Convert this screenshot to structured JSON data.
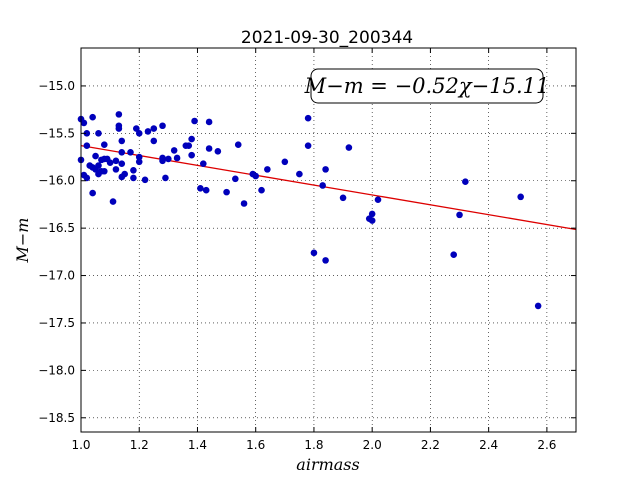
{
  "chart_data": {
    "type": "scatter",
    "title": "2021-09-30_200344",
    "xlabel": "airmass",
    "ylabel": "M−m",
    "xlim": [
      1.0,
      2.7
    ],
    "ylim": [
      -18.65,
      -14.6
    ],
    "y_inverted": true,
    "grid": true,
    "grid_style": "dotted",
    "xticks": [
      1.0,
      1.2,
      1.4,
      1.6,
      1.8,
      2.0,
      2.2,
      2.4,
      2.6
    ],
    "xtick_labels": [
      "1.0",
      "1.2",
      "1.4",
      "1.6",
      "1.8",
      "2.0",
      "2.2",
      "2.4",
      "2.6"
    ],
    "yticks": [
      -15.0,
      -15.5,
      -16.0,
      -16.5,
      -17.0,
      -17.5,
      -18.0,
      -18.5
    ],
    "ytick_labels": [
      "−15.0",
      "−15.5",
      "−16.0",
      "−16.5",
      "−17.0",
      "−17.5",
      "−18.0",
      "−18.5"
    ],
    "annotation": "M−m = −0.52χ−15.11",
    "annotation_placement": "top-right",
    "fit_line": {
      "slope": -0.52,
      "intercept": -15.11,
      "x_range": [
        1.0,
        2.7
      ],
      "color": "#dd0000"
    },
    "marker_color": "#0000bb",
    "points": [
      [
        1.0,
        -15.35
      ],
      [
        1.01,
        -15.39
      ],
      [
        1.0,
        -15.78
      ],
      [
        1.01,
        -15.94
      ],
      [
        1.02,
        -15.97
      ],
      [
        1.02,
        -15.63
      ],
      [
        1.02,
        -15.5
      ],
      [
        1.03,
        -15.84
      ],
      [
        1.04,
        -15.33
      ],
      [
        1.04,
        -15.86
      ],
      [
        1.04,
        -16.13
      ],
      [
        1.05,
        -15.88
      ],
      [
        1.05,
        -15.74
      ],
      [
        1.06,
        -15.5
      ],
      [
        1.06,
        -15.84
      ],
      [
        1.06,
        -15.93
      ],
      [
        1.07,
        -15.9
      ],
      [
        1.07,
        -15.78
      ],
      [
        1.08,
        -15.77
      ],
      [
        1.08,
        -15.9
      ],
      [
        1.08,
        -15.62
      ],
      [
        1.09,
        -15.77
      ],
      [
        1.1,
        -15.81
      ],
      [
        1.11,
        -16.22
      ],
      [
        1.12,
        -15.88
      ],
      [
        1.12,
        -15.79
      ],
      [
        1.13,
        -15.42
      ],
      [
        1.13,
        -15.45
      ],
      [
        1.13,
        -15.3
      ],
      [
        1.14,
        -15.58
      ],
      [
        1.14,
        -15.7
      ],
      [
        1.14,
        -15.82
      ],
      [
        1.14,
        -15.96
      ],
      [
        1.15,
        -15.93
      ],
      [
        1.17,
        -15.7
      ],
      [
        1.18,
        -15.89
      ],
      [
        1.18,
        -15.97
      ],
      [
        1.19,
        -15.45
      ],
      [
        1.2,
        -15.75
      ],
      [
        1.2,
        -15.8
      ],
      [
        1.2,
        -15.5
      ],
      [
        1.22,
        -15.99
      ],
      [
        1.23,
        -15.48
      ],
      [
        1.25,
        -15.45
      ],
      [
        1.25,
        -15.58
      ],
      [
        1.28,
        -15.42
      ],
      [
        1.28,
        -15.76
      ],
      [
        1.28,
        -15.79
      ],
      [
        1.29,
        -15.97
      ],
      [
        1.3,
        -15.77
      ],
      [
        1.32,
        -15.68
      ],
      [
        1.33,
        -15.76
      ],
      [
        1.36,
        -15.63
      ],
      [
        1.37,
        -15.63
      ],
      [
        1.38,
        -15.56
      ],
      [
        1.38,
        -15.73
      ],
      [
        1.39,
        -15.37
      ],
      [
        1.41,
        -16.08
      ],
      [
        1.42,
        -15.82
      ],
      [
        1.43,
        -16.1
      ],
      [
        1.44,
        -15.66
      ],
      [
        1.44,
        -15.38
      ],
      [
        1.47,
        -15.69
      ],
      [
        1.5,
        -16.12
      ],
      [
        1.53,
        -15.98
      ],
      [
        1.54,
        -15.62
      ],
      [
        1.56,
        -16.24
      ],
      [
        1.59,
        -15.93
      ],
      [
        1.6,
        -15.95
      ],
      [
        1.62,
        -16.1
      ],
      [
        1.64,
        -15.88
      ],
      [
        1.7,
        -15.8
      ],
      [
        1.75,
        -15.93
      ],
      [
        1.78,
        -15.34
      ],
      [
        1.78,
        -15.63
      ],
      [
        1.8,
        -16.76
      ],
      [
        1.83,
        -16.05
      ],
      [
        1.84,
        -15.88
      ],
      [
        1.84,
        -16.84
      ],
      [
        1.9,
        -16.18
      ],
      [
        1.92,
        -15.65
      ],
      [
        1.99,
        -16.4
      ],
      [
        2.0,
        -16.35
      ],
      [
        2.0,
        -16.42
      ],
      [
        2.02,
        -16.2
      ],
      [
        2.28,
        -16.78
      ],
      [
        2.3,
        -16.36
      ],
      [
        2.32,
        -16.01
      ],
      [
        2.51,
        -16.17
      ],
      [
        2.57,
        -17.32
      ]
    ]
  }
}
